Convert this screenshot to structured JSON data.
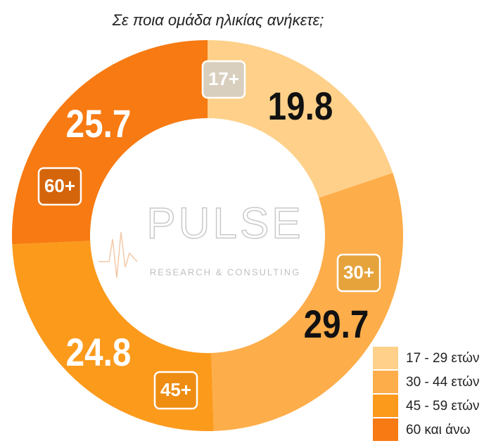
{
  "chart_data": {
    "type": "donut",
    "title": "Σε ποια ομάδα ηλικίας ανήκετε;",
    "categories": [
      "17 - 29 ετών",
      "30 - 44 ετών",
      "45 - 59 ετών",
      "60 και άνω"
    ],
    "values": [
      19.8,
      29.7,
      24.8,
      25.7
    ],
    "colors": [
      "#fed089",
      "#fdad4a",
      "#fc9a1c",
      "#f77a12"
    ],
    "badges": [
      "17+",
      "30+",
      "45+",
      "60+"
    ],
    "watermark": [
      "PULSE",
      "RESEARCH & CONSULTING"
    ],
    "legend": "bottom-right"
  }
}
